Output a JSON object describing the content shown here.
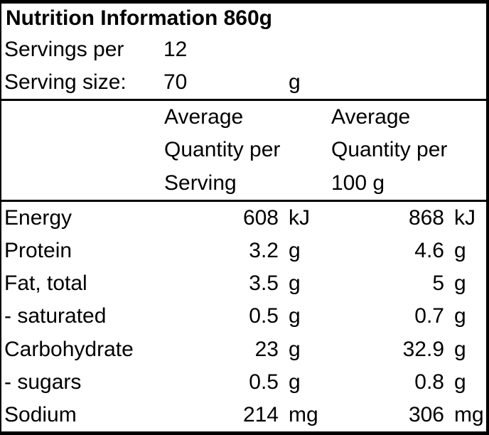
{
  "title": "Nutrition Information 860g",
  "servings": {
    "label": "Servings per",
    "value": "12"
  },
  "serving_size": {
    "label": "Serving size:",
    "value": "70",
    "unit": "g"
  },
  "columns": {
    "per_serving": [
      "Average",
      "Quantity per",
      "Serving"
    ],
    "per_100g": [
      "Average",
      "Quantity per",
      "100 g"
    ]
  },
  "nutrients": [
    {
      "name": "Energy",
      "per_serving": "608",
      "per_serving_unit": "kJ",
      "per_100g": "868",
      "per_100g_unit": "kJ"
    },
    {
      "name": "Protein",
      "per_serving": "3.2",
      "per_serving_unit": "g",
      "per_100g": "4.6",
      "per_100g_unit": "g"
    },
    {
      "name": "Fat, total",
      "per_serving": "3.5",
      "per_serving_unit": "g",
      "per_100g": "5",
      "per_100g_unit": "g"
    },
    {
      "name": "- saturated",
      "per_serving": "0.5",
      "per_serving_unit": "g",
      "per_100g": "0.7",
      "per_100g_unit": "g"
    },
    {
      "name": "Carbohydrate",
      "per_serving": "23",
      "per_serving_unit": "g",
      "per_100g": "32.9",
      "per_100g_unit": "g"
    },
    {
      "name": "- sugars",
      "per_serving": "0.5",
      "per_serving_unit": "g",
      "per_100g": "0.8",
      "per_100g_unit": "g"
    },
    {
      "name": "Sodium",
      "per_serving": "214",
      "per_serving_unit": "mg",
      "per_100g": "306",
      "per_100g_unit": "mg"
    }
  ],
  "colors": {
    "text": "#000000",
    "background": "#ffffff",
    "border": "#000000"
  }
}
